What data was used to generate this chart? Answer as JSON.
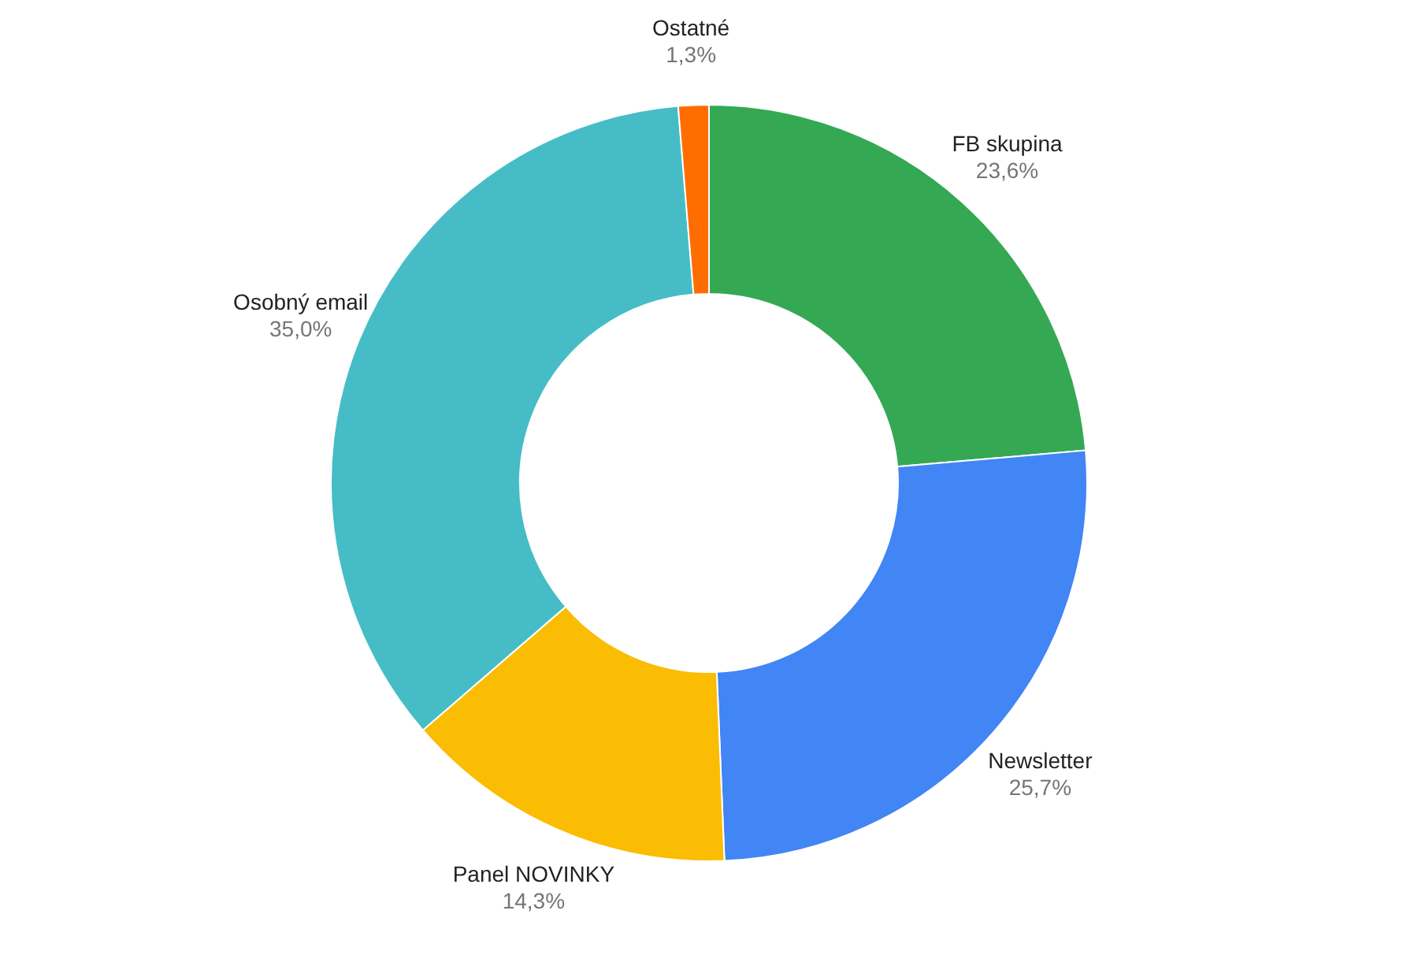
{
  "chart_data": {
    "type": "donut",
    "categories": [
      "FB skupina",
      "Newsletter",
      "Panel NOVINKY",
      "Osobný email",
      "Ostatné"
    ],
    "values": [
      23.6,
      25.7,
      14.3,
      35.0,
      1.3
    ],
    "colors": [
      "#34a853",
      "#4285f4",
      "#fbbc04",
      "#46bdc6",
      "#ff6d01"
    ],
    "value_labels": [
      "23,6%",
      "25,7%",
      "14,3%",
      "35,0%",
      "1,3%"
    ],
    "legend": false
  }
}
